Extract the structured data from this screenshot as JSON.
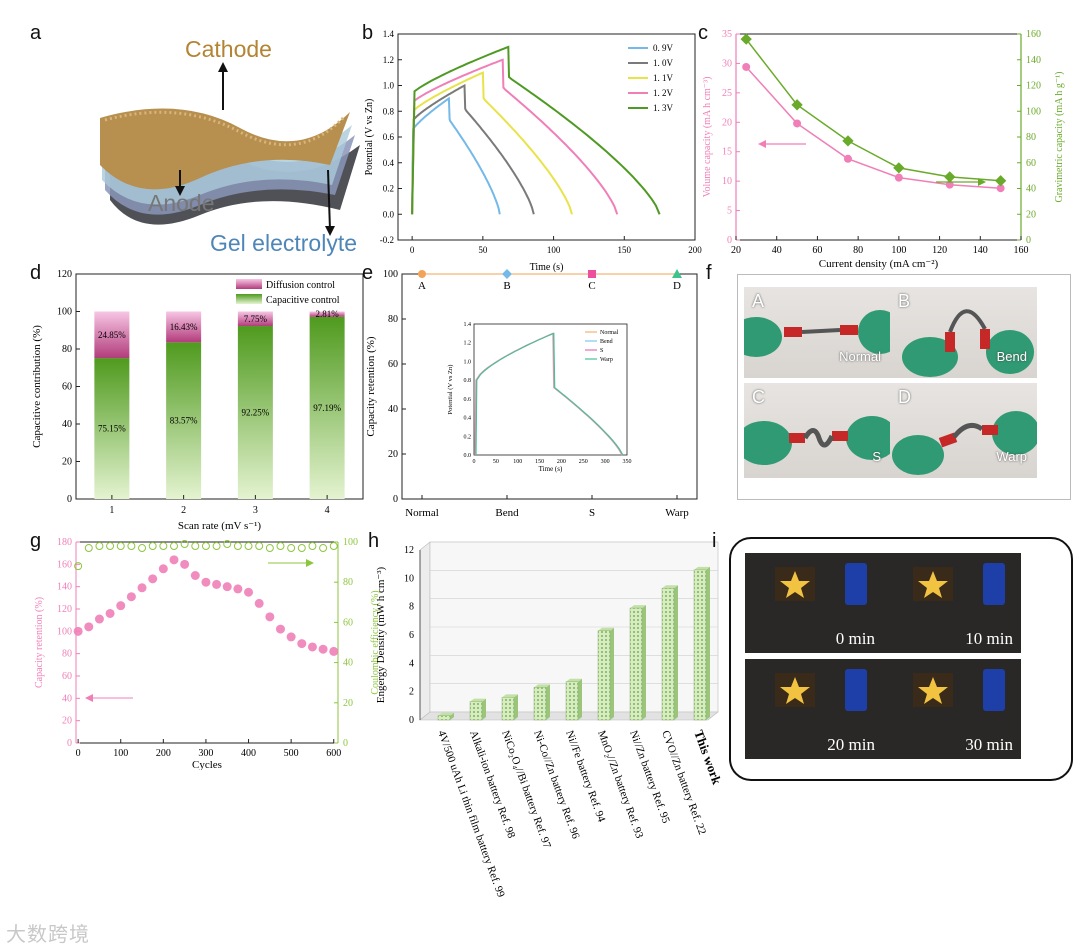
{
  "panel_labels": {
    "a": "a",
    "b": "b",
    "c": "c",
    "d": "d",
    "e": "e",
    "f": "f",
    "g": "g",
    "h": "h",
    "i": "i"
  },
  "panel_a": {
    "cathode": "Cathode",
    "anode": "Anode",
    "electrolyte": "Gel electrolyte"
  },
  "colors": {
    "pink": "#f07fb8",
    "green": "#6aaa2a",
    "blue": "#74b9e8",
    "yellow": "#e8e34a",
    "darkgreen": "#4e9a24",
    "orange": "#f2a35a"
  },
  "panel_f": {
    "photos": [
      {
        "tag": "A",
        "caption": "Normal"
      },
      {
        "tag": "B",
        "caption": "Bend"
      },
      {
        "tag": "C",
        "caption": "S"
      },
      {
        "tag": "D",
        "caption": "Warp"
      }
    ]
  },
  "panel_i": {
    "captions": [
      "0 min",
      "10 min",
      "20 min",
      "30 min"
    ]
  },
  "watermark": "大数跨境",
  "chart_data": [
    {
      "id": "b",
      "type": "line",
      "xlabel": "Time (s)",
      "ylabel": "Potential (V vs Zn)",
      "xlim": [
        -10,
        200
      ],
      "ylim": [
        -0.2,
        1.4
      ],
      "xticks": [
        "0",
        "50",
        "100",
        "150",
        "200"
      ],
      "yticks": [
        "-0.2",
        "0.0",
        "0.2",
        "0.4",
        "0.6",
        "0.8",
        "1.0",
        "1.2",
        "1.4"
      ],
      "series": [
        {
          "name": "0. 9V",
          "color": "#74b9e8",
          "peak_v": 0.9,
          "charge_end_s": 26,
          "discharge_end_s": 62
        },
        {
          "name": "1. 0V",
          "color": "#7a7a7a",
          "peak_v": 1.0,
          "charge_end_s": 37,
          "discharge_end_s": 86
        },
        {
          "name": "1. 1V",
          "color": "#e8e34a",
          "peak_v": 1.1,
          "charge_end_s": 50,
          "discharge_end_s": 113
        },
        {
          "name": "1. 2V",
          "color": "#f07fb8",
          "peak_v": 1.2,
          "charge_end_s": 64,
          "discharge_end_s": 145
        },
        {
          "name": "1. 3V",
          "color": "#4e9a24",
          "peak_v": 1.3,
          "charge_end_s": 68,
          "discharge_end_s": 175
        }
      ]
    },
    {
      "id": "c",
      "type": "line",
      "xlabel": "Current density (mA cm⁻²)",
      "ylabel_left": "Volume capacity (mA h cm⁻³)",
      "ylabel_right": "Gravimetric capacity (mA h g⁻¹)",
      "xlim": [
        20,
        160
      ],
      "ylim_left": [
        0,
        35
      ],
      "ylim_right": [
        0,
        160
      ],
      "xticks": [
        "20",
        "40",
        "60",
        "80",
        "100",
        "120",
        "140",
        "160"
      ],
      "yticks_left": [
        "0",
        "5",
        "10",
        "15",
        "20",
        "25",
        "30",
        "35"
      ],
      "yticks_right": [
        "0",
        "20",
        "40",
        "60",
        "80",
        "100",
        "120",
        "140",
        "160"
      ],
      "x": [
        25,
        50,
        75,
        100,
        125,
        150
      ],
      "series": [
        {
          "name": "Volume capacity",
          "axis": "left",
          "color": "#f07fb8",
          "values": [
            29.4,
            19.8,
            13.8,
            10.6,
            9.4,
            8.8
          ]
        },
        {
          "name": "Gravimetric capacity",
          "axis": "right",
          "color": "#6aaa2a",
          "values": [
            156,
            105,
            77,
            56,
            49,
            46
          ]
        }
      ]
    },
    {
      "id": "d",
      "type": "bar",
      "xlabel": "Scan rate (mV s⁻¹)",
      "ylabel": "Capacitive contribution (%)",
      "ylim": [
        0,
        120
      ],
      "yticks": [
        "0",
        "20",
        "40",
        "60",
        "80",
        "100",
        "120"
      ],
      "categories": [
        "1",
        "2",
        "3",
        "4"
      ],
      "legend": [
        "Diffusion control",
        "Capacitive control"
      ],
      "series": [
        {
          "name": "Capacitive control",
          "values": [
            75.15,
            83.57,
            92.25,
            97.19
          ],
          "labels": [
            "75.15%",
            "83.57%",
            "92.25%",
            "97.19%"
          ]
        },
        {
          "name": "Diffusion control",
          "values": [
            24.85,
            16.43,
            7.75,
            2.81
          ],
          "labels": [
            "24.85%",
            "16.43%",
            "7.75%",
            "2.81%"
          ]
        }
      ]
    },
    {
      "id": "e",
      "type": "scatter",
      "ylabel": "Capacity retention (%)",
      "ylim": [
        0,
        100
      ],
      "yticks": [
        "0",
        "20",
        "40",
        "60",
        "80",
        "100"
      ],
      "categories": [
        "Normal",
        "Bend",
        "S",
        "Warp"
      ],
      "points": [
        {
          "label": "A",
          "value": 100,
          "color": "#f2a35a",
          "shape": "circle"
        },
        {
          "label": "B",
          "value": 100,
          "color": "#74b9e8",
          "shape": "diamond"
        },
        {
          "label": "C",
          "value": 100,
          "color": "#ec4f9e",
          "shape": "square"
        },
        {
          "label": "D",
          "value": 100,
          "color": "#3cc48c",
          "shape": "triangle"
        }
      ],
      "inset": {
        "xlabel": "Time (s)",
        "ylabel": "Potential (V vs Zn)",
        "xlim": [
          0,
          350
        ],
        "ylim": [
          0,
          1.4
        ],
        "xticks": [
          "0",
          "50",
          "100",
          "150",
          "200",
          "250",
          "300",
          "350"
        ],
        "yticks": [
          "0.0",
          "0.2",
          "0.4",
          "0.6",
          "0.8",
          "1.0",
          "1.2",
          "1.4"
        ],
        "series": [
          {
            "name": "Normal",
            "color": "#f2b26a"
          },
          {
            "name": "Bend",
            "color": "#7fc6e8"
          },
          {
            "name": "S",
            "color": "#e66fb0"
          },
          {
            "name": "Warp",
            "color": "#46c29a"
          }
        ]
      }
    },
    {
      "id": "g",
      "type": "scatter",
      "xlabel": "Cycles",
      "ylabel_left": "Capacity retention (%)",
      "ylabel_right": "Coulombic efficiency (%)",
      "xlim": [
        -5,
        610
      ],
      "ylim_left": [
        0,
        180
      ],
      "ylim_right": [
        0,
        100
      ],
      "xticks": [
        "0",
        "100",
        "200",
        "300",
        "400",
        "500",
        "600"
      ],
      "yticks_left": [
        "0",
        "20",
        "40",
        "60",
        "80",
        "100",
        "120",
        "140",
        "160",
        "180"
      ],
      "yticks_right": [
        "0",
        "20",
        "40",
        "60",
        "80",
        "100"
      ],
      "series": [
        {
          "name": "Capacity retention",
          "axis": "left",
          "color": "#f07fb8",
          "x": [
            0,
            25,
            50,
            75,
            100,
            125,
            150,
            175,
            200,
            225,
            250,
            275,
            300,
            325,
            350,
            375,
            400,
            425,
            450,
            475,
            500,
            525,
            550,
            575,
            600
          ],
          "values": [
            100,
            104,
            111,
            116,
            123,
            131,
            139,
            147,
            156,
            164,
            160,
            150,
            144,
            142,
            140,
            138,
            135,
            125,
            113,
            102,
            95,
            89,
            86,
            84,
            82
          ]
        },
        {
          "name": "Coulombic efficiency",
          "axis": "right",
          "color": "#8cc63e",
          "x": [
            0,
            25,
            50,
            75,
            100,
            125,
            150,
            175,
            200,
            225,
            250,
            275,
            300,
            325,
            350,
            375,
            400,
            425,
            450,
            475,
            500,
            525,
            550,
            575,
            600
          ],
          "values": [
            88,
            97,
            98,
            98,
            98,
            98,
            97,
            98,
            98,
            98,
            99,
            98,
            98,
            98,
            99,
            98,
            98,
            98,
            97,
            98,
            97,
            97,
            98,
            97,
            98
          ]
        }
      ]
    },
    {
      "id": "h",
      "type": "bar",
      "ylabel": "Engergy Density (mW h cm⁻³)",
      "ylim": [
        0,
        12
      ],
      "yticks": [
        "0",
        "2",
        "4",
        "6",
        "8",
        "10",
        "12"
      ],
      "categories": [
        "4V/500 uAh Li thin film battery Ref. 99",
        "Alkali-ion battery Ref. 98",
        "NiCo₂O₄//Bi battery Ref. 97",
        "Ni-Co//Zn battery Ref. 96",
        "Ni//Fe battery Ref. 94",
        "MnO₂//Zn battery Ref. 93",
        "Ni//Zn battery Ref. 95",
        "CVO//Zn battery Ref. 22",
        "This work"
      ],
      "values": [
        0.3,
        1.3,
        1.6,
        2.3,
        2.7,
        6.3,
        7.9,
        9.3,
        10.6
      ]
    }
  ]
}
